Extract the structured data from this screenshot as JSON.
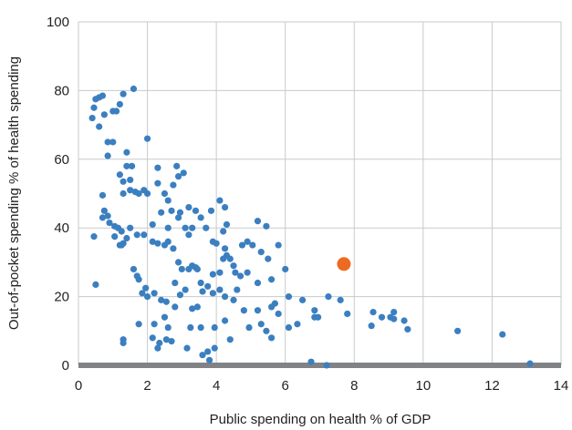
{
  "chart_data": {
    "type": "scatter",
    "title": "",
    "xlabel": "Public spending on health % of GDP",
    "ylabel": "Out-of-pocket spending % of health spending",
    "xlim": [
      0,
      14
    ],
    "ylim": [
      0,
      100
    ],
    "x_ticks": [
      "0",
      "2",
      "4",
      "6",
      "8",
      "10",
      "12",
      "14"
    ],
    "y_ticks": [
      "0",
      "20",
      "40",
      "60",
      "80",
      "100"
    ],
    "grid": true,
    "legend": "none",
    "colors": {
      "points": "#3b7fc0",
      "highlight": "#ee6a22",
      "grid": "#c8cacc",
      "baseline": "#808285",
      "text": "#231f20"
    },
    "series": [
      {
        "points": [
          [
            0.4,
            72
          ],
          [
            0.45,
            75
          ],
          [
            0.5,
            77.5
          ],
          [
            0.6,
            78
          ],
          [
            0.7,
            78.5
          ],
          [
            0.75,
            73
          ],
          [
            1.0,
            74
          ],
          [
            1.1,
            74
          ],
          [
            1.2,
            76
          ],
          [
            1.3,
            79
          ],
          [
            1.6,
            80.5
          ],
          [
            0.6,
            69.5
          ],
          [
            0.85,
            65
          ],
          [
            1.0,
            65
          ],
          [
            0.85,
            61
          ],
          [
            1.2,
            55.5
          ],
          [
            1.4,
            62
          ],
          [
            1.4,
            58
          ],
          [
            1.5,
            54
          ],
          [
            1.55,
            58
          ],
          [
            1.3,
            53.5
          ],
          [
            1.3,
            50
          ],
          [
            1.5,
            51
          ],
          [
            1.65,
            50.5
          ],
          [
            1.75,
            50
          ],
          [
            1.9,
            51
          ],
          [
            2.0,
            50
          ],
          [
            2.0,
            66
          ],
          [
            2.3,
            57.5
          ],
          [
            2.3,
            53
          ],
          [
            2.5,
            50
          ],
          [
            2.6,
            48
          ],
          [
            2.75,
            52.5
          ],
          [
            2.85,
            58
          ],
          [
            2.9,
            55
          ],
          [
            3.05,
            56
          ],
          [
            0.7,
            49.5
          ],
          [
            0.7,
            43
          ],
          [
            0.75,
            45
          ],
          [
            0.85,
            43.5
          ],
          [
            0.9,
            41.5
          ],
          [
            1.05,
            40.5
          ],
          [
            1.15,
            40
          ],
          [
            1.25,
            39
          ],
          [
            1.3,
            35.5
          ],
          [
            1.5,
            40
          ],
          [
            0.45,
            37.5
          ],
          [
            1.05,
            37.5
          ],
          [
            1.4,
            37
          ],
          [
            1.7,
            38
          ],
          [
            1.9,
            38
          ],
          [
            2.15,
            41
          ],
          [
            2.15,
            36
          ],
          [
            2.3,
            35.5
          ],
          [
            1.2,
            35
          ],
          [
            1.25,
            35
          ],
          [
            2.4,
            44.5
          ],
          [
            2.6,
            40
          ],
          [
            2.7,
            45
          ],
          [
            2.9,
            43
          ],
          [
            2.95,
            44.5
          ],
          [
            3.1,
            40
          ],
          [
            3.2,
            46
          ],
          [
            3.4,
            45
          ],
          [
            3.55,
            43
          ],
          [
            3.2,
            38
          ],
          [
            3.3,
            40
          ],
          [
            3.7,
            40
          ],
          [
            3.85,
            45
          ],
          [
            4.1,
            48
          ],
          [
            4.25,
            46
          ],
          [
            4.3,
            41
          ],
          [
            3.9,
            36
          ],
          [
            4.0,
            35.5
          ],
          [
            4.2,
            39
          ],
          [
            4.25,
            34
          ],
          [
            4.3,
            32
          ],
          [
            4.4,
            31
          ],
          [
            4.75,
            35
          ],
          [
            4.9,
            36
          ],
          [
            5.05,
            35
          ],
          [
            5.2,
            42
          ],
          [
            5.45,
            40.5
          ],
          [
            5.8,
            35
          ],
          [
            2.5,
            35
          ],
          [
            2.6,
            36
          ],
          [
            2.75,
            34
          ],
          [
            2.9,
            30
          ],
          [
            2.8,
            24
          ],
          [
            3.0,
            28
          ],
          [
            3.2,
            28
          ],
          [
            3.3,
            29
          ],
          [
            3.4,
            28.5
          ],
          [
            3.45,
            28
          ],
          [
            3.55,
            24
          ],
          [
            3.6,
            21.5
          ],
          [
            3.9,
            26.5
          ],
          [
            4.1,
            27
          ],
          [
            4.2,
            31
          ],
          [
            4.5,
            29
          ],
          [
            4.55,
            27
          ],
          [
            4.7,
            26
          ],
          [
            4.9,
            27
          ],
          [
            5.3,
            33
          ],
          [
            5.5,
            31
          ],
          [
            5.6,
            25
          ],
          [
            5.2,
            24
          ],
          [
            6.0,
            28
          ],
          [
            1.6,
            28
          ],
          [
            1.7,
            26
          ],
          [
            1.75,
            25
          ],
          [
            1.85,
            21
          ],
          [
            1.95,
            22.5
          ],
          [
            2.0,
            20
          ],
          [
            2.2,
            21
          ],
          [
            2.4,
            19
          ],
          [
            2.55,
            18.5
          ],
          [
            2.8,
            17
          ],
          [
            2.95,
            20.5
          ],
          [
            3.1,
            22
          ],
          [
            3.3,
            16.5
          ],
          [
            3.45,
            17
          ],
          [
            3.75,
            23
          ],
          [
            3.9,
            21
          ],
          [
            4.1,
            22
          ],
          [
            4.25,
            20
          ],
          [
            4.5,
            19
          ],
          [
            4.6,
            22
          ],
          [
            4.8,
            16
          ],
          [
            5.2,
            16
          ],
          [
            5.6,
            17
          ],
          [
            5.7,
            18
          ],
          [
            5.8,
            15
          ],
          [
            6.1,
            20
          ],
          [
            6.5,
            19
          ],
          [
            6.85,
            16
          ],
          [
            6.95,
            14
          ],
          [
            7.25,
            20
          ],
          [
            7.6,
            19
          ],
          [
            7.8,
            15
          ],
          [
            2.2,
            12
          ],
          [
            2.5,
            14
          ],
          [
            2.6,
            11
          ],
          [
            3.25,
            11
          ],
          [
            3.55,
            11
          ],
          [
            3.95,
            11
          ],
          [
            4.25,
            13
          ],
          [
            4.95,
            11
          ],
          [
            5.3,
            12
          ],
          [
            5.45,
            10
          ],
          [
            5.6,
            8
          ],
          [
            6.1,
            11
          ],
          [
            6.35,
            12
          ],
          [
            6.85,
            14
          ],
          [
            0.5,
            23.5
          ],
          [
            1.75,
            12
          ],
          [
            1.3,
            7.5
          ],
          [
            1.3,
            6.5
          ],
          [
            2.15,
            8
          ],
          [
            2.3,
            5
          ],
          [
            2.55,
            7.5
          ],
          [
            2.7,
            7
          ],
          [
            3.15,
            5
          ],
          [
            3.6,
            3
          ],
          [
            3.75,
            4
          ],
          [
            3.95,
            5
          ],
          [
            4.4,
            7.5
          ],
          [
            2.35,
            6.5
          ],
          [
            3.8,
            1.5
          ],
          [
            6.75,
            1
          ],
          [
            7.2,
            0
          ],
          [
            8.5,
            11.5
          ],
          [
            8.55,
            15.5
          ],
          [
            8.8,
            14
          ],
          [
            9.05,
            14
          ],
          [
            9.15,
            15.5
          ],
          [
            9.15,
            13.5
          ],
          [
            9.45,
            13
          ],
          [
            9.55,
            10.5
          ],
          [
            11.0,
            10
          ],
          [
            12.3,
            9
          ],
          [
            13.1,
            0.5
          ]
        ]
      },
      {
        "highlight": true,
        "points": [
          [
            7.7,
            29.5
          ]
        ]
      }
    ]
  }
}
